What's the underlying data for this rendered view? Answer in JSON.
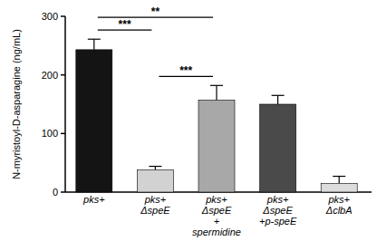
{
  "chart_data": {
    "type": "bar",
    "y_label": "N-myristoyl-D-asparagine (ng/mL)",
    "categories": [
      "pks+",
      "pks+\nΔspeE",
      "pks+\nΔspeE\n+\nspermidine",
      "pks+\nΔspeE\n+p-speE",
      "pks+\nΔclbA"
    ],
    "values": [
      243,
      38,
      157,
      150,
      15
    ],
    "errors": [
      18,
      6,
      25,
      15,
      12
    ],
    "colors": [
      "#141414",
      "#d2d2d2",
      "#a8a8a8",
      "#4a4a4a",
      "#dcdcdc"
    ],
    "ylim": [
      0,
      300
    ],
    "yticks": [
      0,
      100,
      200,
      300
    ],
    "grid": false,
    "comparisons": [
      {
        "from": 1,
        "to": 2,
        "label": "***"
      },
      {
        "from": 0,
        "to": 1,
        "label": "***"
      },
      {
        "from": 0,
        "to": 2,
        "label": "**"
      }
    ]
  }
}
